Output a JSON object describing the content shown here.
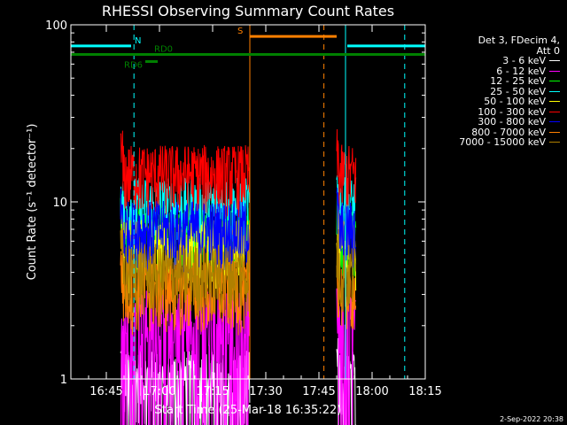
{
  "chart_data": {
    "type": "line",
    "title": "RHESSI Observing Summary Count Rates",
    "xlabel": "Start Time (25-Mar-18 16:35:22)",
    "ylabel": "Count Rate (s⁻¹ detector⁻¹)",
    "yscale": "log",
    "ylim": [
      1,
      100
    ],
    "xlim_minutes_after_1635": [
      0,
      100
    ],
    "y_ticks": [
      "1",
      "10",
      "100"
    ],
    "x_ticks": [
      {
        "label": "16:45",
        "minute": 10
      },
      {
        "label": "17:00",
        "minute": 25
      },
      {
        "label": "17:15",
        "minute": 40
      },
      {
        "label": "17:30",
        "minute": 55
      },
      {
        "label": "17:45",
        "minute": 70
      },
      {
        "label": "18:00",
        "minute": 85
      },
      {
        "label": "18:15",
        "minute": 100
      }
    ],
    "data_intervals_minutes": [
      [
        14,
        50.5
      ],
      [
        75,
        80.5
      ]
    ],
    "series": [
      {
        "name": "3 - 6 keV",
        "color": "#ffffff",
        "typical": 1.0
      },
      {
        "name": "6 - 12 keV",
        "color": "#ff00ff",
        "typical": 2.2
      },
      {
        "name": "12 - 25 keV",
        "color": "#00ff00",
        "typical": 6.5
      },
      {
        "name": "25 - 50 keV",
        "color": "#00ffff",
        "typical": 9.5
      },
      {
        "name": "50 - 100 keV",
        "color": "#ffff00",
        "typical": 5.5
      },
      {
        "name": "100 - 300 keV",
        "color": "#ff0000",
        "typical": 14.5
      },
      {
        "name": "300 - 800 keV",
        "color": "#0000ff",
        "typical": 7.0
      },
      {
        "name": "800 - 7000 keV",
        "color": "#ff8000",
        "typical": 3.2
      },
      {
        "name": "7000 - 15000 keV",
        "color": "#b08000",
        "typical": 4.0
      }
    ],
    "flags": [
      {
        "label": "N",
        "color": "#00ffff",
        "y": 76,
        "intervals": [
          [
            0,
            17
          ],
          [
            78,
            100
          ]
        ]
      },
      {
        "label": "S",
        "color": "#ff8000",
        "y": 86,
        "intervals": [
          [
            50.5,
            75
          ]
        ]
      },
      {
        "label": "RD0",
        "color": "#008000",
        "y": 68,
        "intervals": [
          [
            0,
            100
          ]
        ]
      },
      {
        "label": "RD6",
        "color": "#008000",
        "y": 62,
        "intervals": [
          [
            21,
            24.5
          ]
        ]
      }
    ],
    "vlines": [
      {
        "minute": 0,
        "color": "#00ffff",
        "style": "solid"
      },
      {
        "minute": 17.8,
        "color": "#00ffff",
        "style": "dashed"
      },
      {
        "minute": 50.5,
        "color": "#ff8000",
        "style": "solid"
      },
      {
        "minute": 71.4,
        "color": "#ff8000",
        "style": "dashed"
      },
      {
        "minute": 77.5,
        "color": "#00ffff",
        "style": "solid"
      },
      {
        "minute": 94.2,
        "color": "#00ffff",
        "style": "dashed"
      }
    ]
  },
  "legend": {
    "header1": "Det 3, FDecim 4,",
    "header2": "Att 0"
  },
  "footer": {
    "date_stamp": "2-Sep-2022 20:38"
  }
}
